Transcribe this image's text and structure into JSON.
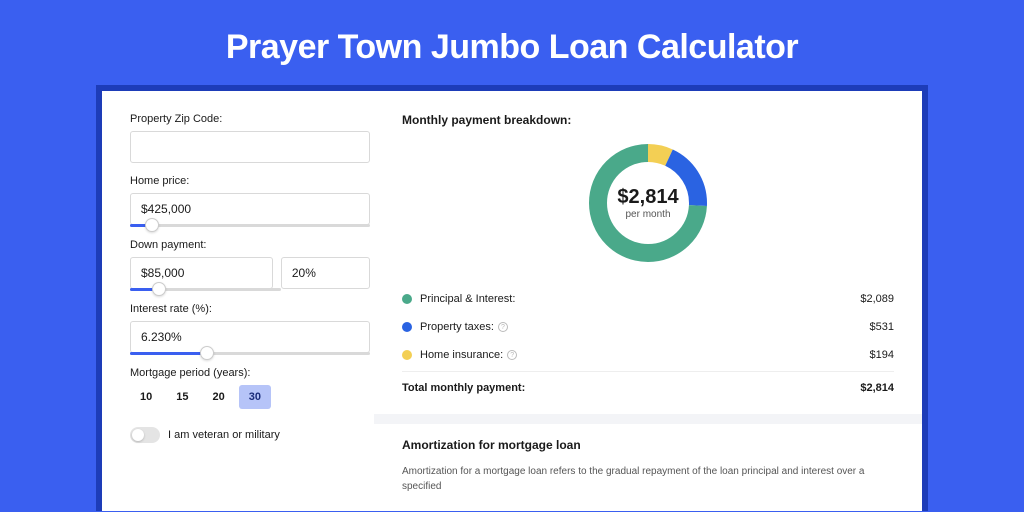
{
  "page": {
    "title": "Prayer Town Jumbo Loan Calculator",
    "background_color": "#3a5ff0",
    "shadow_color": "#1d3cb8"
  },
  "form": {
    "zip": {
      "label": "Property Zip Code:",
      "value": ""
    },
    "home_price": {
      "label": "Home price:",
      "value": "$425,000",
      "slider_pct": 9
    },
    "down_payment": {
      "label": "Down payment:",
      "amount": "$85,000",
      "percent": "20%",
      "slider_pct": 19
    },
    "interest_rate": {
      "label": "Interest rate (%):",
      "value": "6.230%",
      "slider_pct": 32
    },
    "mortgage_period": {
      "label": "Mortgage period (years):",
      "options": [
        "10",
        "15",
        "20",
        "30"
      ],
      "selected": "30"
    },
    "veteran": {
      "label": "I am veteran or military",
      "checked": false
    }
  },
  "breakdown": {
    "heading": "Monthly payment breakdown:",
    "donut": {
      "total_label": "$2,814",
      "sub_label": "per month",
      "segments": [
        {
          "name": "principal_interest",
          "value": 2089,
          "percent": 74.2,
          "color": "#4aa98a"
        },
        {
          "name": "property_taxes",
          "value": 531,
          "percent": 18.9,
          "color": "#2a63e2"
        },
        {
          "name": "home_insurance",
          "value": 194,
          "percent": 6.9,
          "color": "#f3cf54"
        }
      ],
      "ring_width": 18,
      "radius": 60,
      "background": "#ffffff"
    },
    "rows": [
      {
        "label": "Principal & Interest:",
        "value": "$2,089",
        "color": "#4aa98a",
        "info": false
      },
      {
        "label": "Property taxes:",
        "value": "$531",
        "color": "#2a63e2",
        "info": true
      },
      {
        "label": "Home insurance:",
        "value": "$194",
        "color": "#f3cf54",
        "info": true
      }
    ],
    "total": {
      "label": "Total monthly payment:",
      "value": "$2,814"
    }
  },
  "amortization": {
    "heading": "Amortization for mortgage loan",
    "text": "Amortization for a mortgage loan refers to the gradual repayment of the loan principal and interest over a specified"
  }
}
